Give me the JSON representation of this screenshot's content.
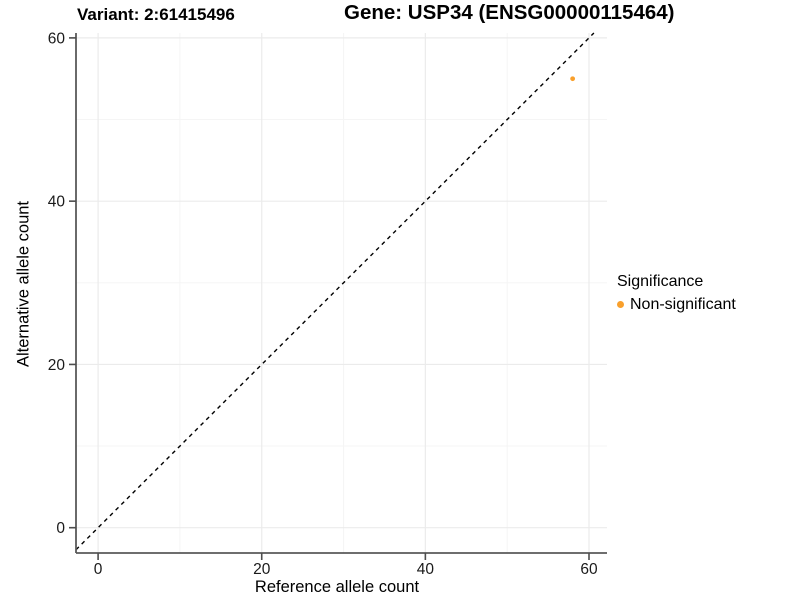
{
  "chart_data": {
    "type": "scatter",
    "titles": {
      "left": "Variant: 2:61415496",
      "right": "Gene: USP34 (ENSG00000115464)"
    },
    "xlabel": "Reference allele count",
    "ylabel": "Alternative allele count",
    "xlim": [
      -2.7,
      62.2
    ],
    "ylim": [
      -3.1,
      60.6
    ],
    "xticks": [
      0,
      20,
      40,
      60
    ],
    "yticks": [
      0,
      20,
      40,
      60
    ],
    "xminor": [
      10,
      30,
      50
    ],
    "yminor": [
      10,
      30,
      50
    ],
    "grid": "major+minor",
    "identity_line": {
      "equation": "y = x",
      "style": "dashed",
      "color": "#000000"
    },
    "series": [
      {
        "name": "Non-significant",
        "color": "#F9A02C",
        "points": [
          {
            "x": 58,
            "y": 55
          }
        ]
      }
    ],
    "legend": {
      "title": "Significance",
      "position": "right-middle",
      "entries": [
        {
          "label": "Non-significant",
          "color": "#F9A02C",
          "marker": "circle"
        }
      ]
    },
    "style": {
      "grid_major_color": "#EBEBEB",
      "grid_minor_color": "#F5F5F5",
      "axis_line_color": "#595959",
      "tick_color": "#4D4D4D",
      "tick_label_color": "#1A1A1A",
      "background": "#FFFFFF"
    }
  }
}
